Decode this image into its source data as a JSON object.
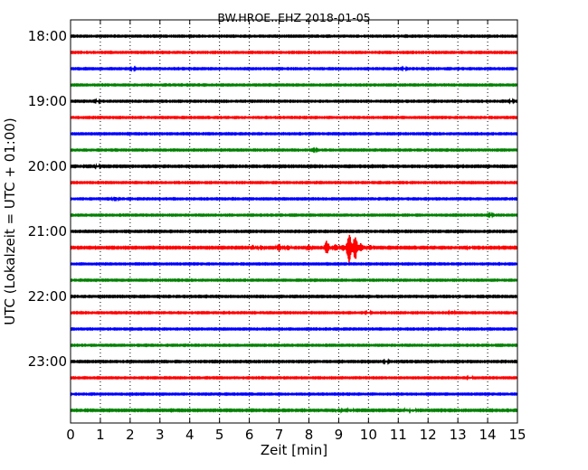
{
  "chart_data": {
    "type": "line",
    "title": "BW.HROE..EHZ 2018-01-05",
    "xlabel": "Zeit  [min]",
    "ylabel": "UTC (Lokalzeit = UTC + 01:00)",
    "xlim": [
      0,
      15
    ],
    "x_ticks": [
      0,
      1,
      2,
      3,
      4,
      5,
      6,
      7,
      8,
      9,
      10,
      11,
      12,
      13,
      14,
      15
    ],
    "x_tick_labels": [
      "0",
      "1",
      "2",
      "3",
      "4",
      "5",
      "6",
      "7",
      "8",
      "9",
      "10",
      "11",
      "12",
      "13",
      "14",
      "15"
    ],
    "y_tick_labels": [
      "18:00",
      "19:00",
      "20:00",
      "21:00",
      "22:00",
      "23:00"
    ],
    "grid": "x-dotted",
    "trace_colors": [
      "#000000",
      "#ff0000",
      "#0000ff",
      "#008000"
    ],
    "traces": [
      {
        "start": "18:00",
        "color": "#000000",
        "amplitude": 0.12,
        "events": []
      },
      {
        "start": "18:15",
        "color": "#ff0000",
        "amplitude": 0.12,
        "events": []
      },
      {
        "start": "18:30",
        "color": "#0000ff",
        "amplitude": 0.12,
        "events": [
          {
            "t": 2.1,
            "amp": 0.25
          },
          {
            "t": 11.2,
            "amp": 0.3
          }
        ]
      },
      {
        "start": "18:45",
        "color": "#008000",
        "amplitude": 0.12,
        "events": []
      },
      {
        "start": "19:00",
        "color": "#000000",
        "amplitude": 0.12,
        "events": [
          {
            "t": 0.9,
            "amp": 0.3
          },
          {
            "t": 14.8,
            "amp": 0.3
          }
        ]
      },
      {
        "start": "19:15",
        "color": "#ff0000",
        "amplitude": 0.12,
        "events": []
      },
      {
        "start": "19:30",
        "color": "#0000ff",
        "amplitude": 0.12,
        "events": []
      },
      {
        "start": "19:45",
        "color": "#008000",
        "amplitude": 0.12,
        "events": [
          {
            "t": 8.2,
            "amp": 0.25
          }
        ]
      },
      {
        "start": "20:00",
        "color": "#000000",
        "amplitude": 0.14,
        "events": [
          {
            "t": 0.9,
            "amp": 0.3
          }
        ]
      },
      {
        "start": "20:15",
        "color": "#ff0000",
        "amplitude": 0.12,
        "events": []
      },
      {
        "start": "20:30",
        "color": "#0000ff",
        "amplitude": 0.12,
        "events": [
          {
            "t": 1.5,
            "amp": 0.9
          }
        ]
      },
      {
        "start": "20:45",
        "color": "#008000",
        "amplitude": 0.12,
        "events": [
          {
            "t": 14.1,
            "amp": 0.25
          }
        ]
      },
      {
        "start": "21:00",
        "color": "#000000",
        "amplitude": 0.13,
        "events": []
      },
      {
        "start": "21:15",
        "color": "#ff0000",
        "amplitude": 0.15,
        "events": [
          {
            "t": 6.1,
            "amp": 1.0
          },
          {
            "t": 6.4,
            "amp": 0.8
          },
          {
            "t": 7.0,
            "amp": 1.4
          },
          {
            "t": 7.3,
            "amp": 0.9
          },
          {
            "t": 8.0,
            "amp": 1.1
          },
          {
            "t": 8.6,
            "amp": 2.8
          },
          {
            "t": 8.9,
            "amp": 1.2
          },
          {
            "t": 9.15,
            "amp": 1.2
          },
          {
            "t": 9.35,
            "amp": 5.6
          },
          {
            "t": 9.55,
            "amp": 5.0
          },
          {
            "t": 9.75,
            "amp": 2.0
          },
          {
            "t": 10.05,
            "amp": 1.0
          },
          {
            "t": 13.4,
            "amp": 0.5
          }
        ]
      },
      {
        "start": "21:30",
        "color": "#0000ff",
        "amplitude": 0.12,
        "events": []
      },
      {
        "start": "21:45",
        "color": "#008000",
        "amplitude": 0.12,
        "events": []
      },
      {
        "start": "22:00",
        "color": "#000000",
        "amplitude": 0.13,
        "events": []
      },
      {
        "start": "22:15",
        "color": "#ff0000",
        "amplitude": 0.12,
        "events": [
          {
            "t": 10.0,
            "amp": 0.35
          },
          {
            "t": 12.8,
            "amp": 0.7
          }
        ]
      },
      {
        "start": "22:30",
        "color": "#0000ff",
        "amplitude": 0.12,
        "events": []
      },
      {
        "start": "22:45",
        "color": "#008000",
        "amplitude": 0.12,
        "events": []
      },
      {
        "start": "23:00",
        "color": "#000000",
        "amplitude": 0.13,
        "events": [
          {
            "t": 10.6,
            "amp": 0.35
          }
        ]
      },
      {
        "start": "23:15",
        "color": "#ff0000",
        "amplitude": 0.12,
        "events": [
          {
            "t": 13.4,
            "amp": 0.4
          }
        ]
      },
      {
        "start": "23:30",
        "color": "#0000ff",
        "amplitude": 0.12,
        "events": []
      },
      {
        "start": "23:45",
        "color": "#008000",
        "amplitude": 0.14,
        "events": [
          {
            "t": 9.0,
            "amp": 0.6
          },
          {
            "t": 9.4,
            "amp": 0.5
          },
          {
            "t": 11.3,
            "amp": 0.5
          },
          {
            "t": 11.5,
            "amp": 0.4
          }
        ]
      }
    ]
  }
}
